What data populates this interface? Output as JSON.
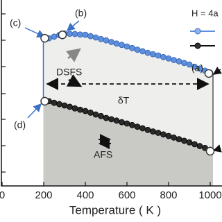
{
  "chart_data": {
    "type": "scatter",
    "x_label": "Temperature ( K )",
    "legend_title": "H = 4a",
    "annotations": [
      "(a)",
      "(b)",
      "(c)",
      "(d)",
      "DSFS",
      "AFS",
      "δT"
    ],
    "x": [
      225,
      250,
      275,
      300,
      325,
      350,
      375,
      400,
      425,
      450,
      475,
      500,
      525,
      550,
      575,
      600,
      625,
      650,
      675,
      700,
      725,
      750,
      775,
      800,
      825,
      850,
      875,
      900,
      925,
      950,
      975,
      1000
    ],
    "series": [
      {
        "color": "#5d8fdc",
        "values": [
          5.56,
          5.62,
          5.68,
          5.74,
          5.73,
          5.72,
          5.7,
          5.69,
          5.64,
          5.59,
          5.53,
          5.48,
          5.42,
          5.36,
          5.31,
          5.25,
          5.19,
          5.13,
          5.07,
          5.01,
          4.96,
          4.91,
          4.85,
          4.8,
          4.74,
          4.69,
          4.63,
          4.57,
          4.49,
          4.42,
          4.34,
          4.26
        ]
      },
      {
        "color": "#2a2a2a",
        "values": [
          3.19,
          3.13,
          3.08,
          3.03,
          2.98,
          2.92,
          2.87,
          2.82,
          2.76,
          2.69,
          2.63,
          2.56,
          2.51,
          2.46,
          2.4,
          2.35,
          2.29,
          2.23,
          2.17,
          2.11,
          2.05,
          2.0,
          1.94,
          1.88,
          1.82,
          1.76,
          1.7,
          1.64,
          1.57,
          1.5,
          1.43,
          1.36
        ]
      }
    ],
    "xlim": [
      0,
      1050
    ],
    "ylim": [
      0,
      7
    ],
    "xticks": [
      0,
      200,
      400,
      600,
      800,
      1000
    ]
  }
}
